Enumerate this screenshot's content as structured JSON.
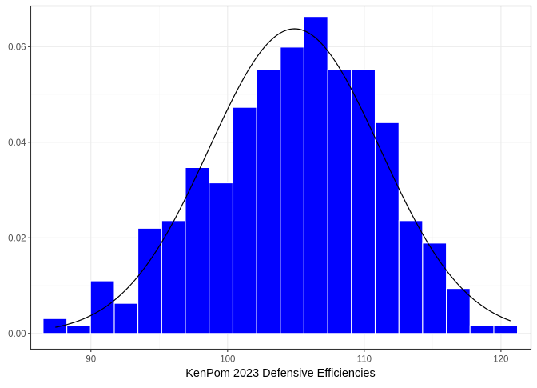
{
  "chart_data": {
    "type": "bar",
    "subtype": "histogram-with-density",
    "title": "",
    "xlabel": "KenPom 2023 Defensive Efficiencies",
    "ylabel": "",
    "xlim": [
      85.6,
      122.2
    ],
    "ylim": [
      -0.0033,
      0.0685
    ],
    "x_ticks": [
      90,
      100,
      110,
      120
    ],
    "y_ticks": [
      0.0,
      0.02,
      0.04,
      0.06
    ],
    "x_tick_labels": [
      "90",
      "100",
      "110",
      "120"
    ],
    "y_tick_labels": [
      "0.00",
      "0.02",
      "0.04",
      "0.06"
    ],
    "grid": true,
    "bin_width": 1.7356,
    "bins": [
      {
        "x0": 86.5,
        "x1": 88.24,
        "density": 0.0031
      },
      {
        "x0": 88.24,
        "x1": 89.97,
        "density": 0.0016
      },
      {
        "x0": 89.97,
        "x1": 91.71,
        "density": 0.011
      },
      {
        "x0": 91.71,
        "x1": 93.44,
        "density": 0.0063
      },
      {
        "x0": 93.44,
        "x1": 95.18,
        "density": 0.022
      },
      {
        "x0": 95.18,
        "x1": 96.91,
        "density": 0.0236
      },
      {
        "x0": 96.91,
        "x1": 98.65,
        "density": 0.0347
      },
      {
        "x0": 98.65,
        "x1": 100.39,
        "density": 0.0315
      },
      {
        "x0": 100.39,
        "x1": 102.12,
        "density": 0.0473
      },
      {
        "x0": 102.12,
        "x1": 103.86,
        "density": 0.0552
      },
      {
        "x0": 103.86,
        "x1": 105.59,
        "density": 0.0599
      },
      {
        "x0": 105.59,
        "x1": 107.33,
        "density": 0.0663
      },
      {
        "x0": 107.33,
        "x1": 109.06,
        "density": 0.0552
      },
      {
        "x0": 109.06,
        "x1": 110.8,
        "density": 0.0552
      },
      {
        "x0": 110.8,
        "x1": 112.54,
        "density": 0.0441
      },
      {
        "x0": 112.54,
        "x1": 114.27,
        "density": 0.0236
      },
      {
        "x0": 114.27,
        "x1": 116.01,
        "density": 0.0189
      },
      {
        "x0": 116.01,
        "x1": 117.74,
        "density": 0.0094
      },
      {
        "x0": 117.74,
        "x1": 119.48,
        "density": 0.0016
      },
      {
        "x0": 119.48,
        "x1": 121.21,
        "density": 0.0016
      }
    ],
    "density_curve": {
      "distribution": "normal",
      "mean": 104.9,
      "sd": 6.26,
      "x_range": [
        87.4,
        120.7
      ]
    },
    "colors": {
      "bar_fill": "#0000ff",
      "bar_outline": "#ffffff",
      "curve": "#000000",
      "grid_major": "#ebebeb",
      "grid_minor": "#f5f5f5",
      "panel_border": "#333333",
      "tick_text": "#4d4d4d",
      "axis_title": "#000000"
    }
  }
}
